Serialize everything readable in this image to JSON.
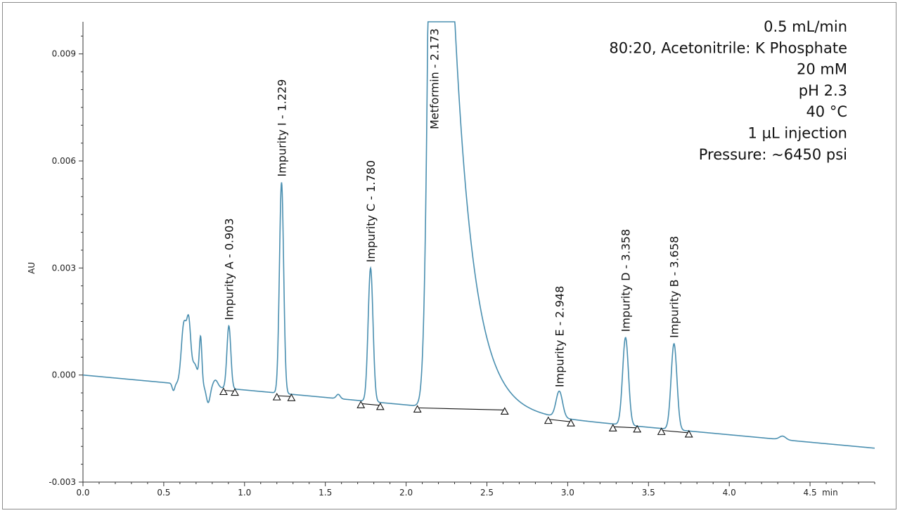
{
  "chart_data": {
    "type": "line",
    "title": "",
    "xlabel": "",
    "x_unit_label": "min",
    "ylabel": "AU",
    "xlim": [
      0.0,
      4.9
    ],
    "ylim": [
      -0.003,
      0.0099
    ],
    "x_ticks": [
      0.0,
      0.5,
      1.0,
      1.5,
      2.0,
      2.5,
      3.0,
      3.5,
      4.0,
      4.5
    ],
    "x_tick_labels": [
      "0.0",
      "0.5",
      "1.0",
      "1.5",
      "2.0",
      "2.5",
      "3.0",
      "3.5",
      "4.0",
      "4.5"
    ],
    "y_ticks": [
      -0.003,
      0.0,
      0.003,
      0.006,
      0.009
    ],
    "y_tick_labels": [
      "-0.003",
      "0.000",
      "0.003",
      "0.006",
      "0.009"
    ],
    "grid": false,
    "colors": {
      "trace": "#4a8fb0",
      "baseline": "#111111"
    },
    "baseline_start": 0.0,
    "baseline_end": -0.00205,
    "peaks": [
      {
        "label": "Impurity A - 0.903",
        "rt": 0.903,
        "apex": 0.00138,
        "width": 0.012
      },
      {
        "label": "Impurity I - 1.229",
        "rt": 1.229,
        "apex": 0.0054,
        "width": 0.013
      },
      {
        "label": "Impurity C - 1.780",
        "rt": 1.78,
        "apex": 0.003,
        "width": 0.015
      },
      {
        "label": "Metformin - 2.173",
        "rt": 2.173,
        "apex": 0.0099,
        "width": 0.05
      },
      {
        "label": "Impurity E - 2.948",
        "rt": 2.948,
        "apex": -0.0005,
        "width": 0.02
      },
      {
        "label": "Impurity D - 3.358",
        "rt": 3.358,
        "apex": 0.00105,
        "width": 0.018
      },
      {
        "label": "Impurity B - 3.658",
        "rt": 3.658,
        "apex": 0.00088,
        "width": 0.018
      }
    ],
    "integration_markers": [
      {
        "x": 0.87,
        "y": -0.00043
      },
      {
        "x": 0.94,
        "y": -0.00045
      },
      {
        "x": 1.2,
        "y": -0.00058
      },
      {
        "x": 1.29,
        "y": -0.0006
      },
      {
        "x": 1.72,
        "y": -0.0008
      },
      {
        "x": 1.84,
        "y": -0.00085
      },
      {
        "x": 2.07,
        "y": -0.00092
      },
      {
        "x": 2.61,
        "y": -0.00098
      },
      {
        "x": 2.88,
        "y": -0.00124
      },
      {
        "x": 3.02,
        "y": -0.00131
      },
      {
        "x": 3.28,
        "y": -0.00145
      },
      {
        "x": 3.43,
        "y": -0.00148
      },
      {
        "x": 3.58,
        "y": -0.00155
      },
      {
        "x": 3.75,
        "y": -0.00162
      }
    ],
    "baseline_segments": [
      [
        0.87,
        0.94
      ],
      [
        1.2,
        1.29
      ],
      [
        1.72,
        1.84
      ],
      [
        2.07,
        2.61
      ],
      [
        2.88,
        3.02
      ],
      [
        3.28,
        3.43
      ],
      [
        3.58,
        3.75
      ]
    ],
    "annotations": [
      "0.5 mL/min",
      "80:20, Acetonitrile: K Phosphate",
      "20 mM",
      "pH 2.3",
      "40 °C",
      "1 µL injection",
      "Pressure: ~6450 psi"
    ]
  }
}
